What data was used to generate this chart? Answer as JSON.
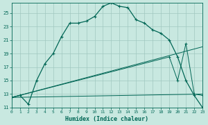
{
  "xlabel": "Humidex (Indice chaleur)",
  "bg_color": "#c8e8e0",
  "grid_color": "#a0c8c0",
  "line_color": "#006655",
  "xlim": [
    0,
    23
  ],
  "ylim": [
    11,
    26.5
  ],
  "xticks": [
    0,
    1,
    2,
    3,
    4,
    5,
    6,
    7,
    8,
    9,
    10,
    11,
    12,
    13,
    14,
    15,
    16,
    17,
    18,
    19,
    20,
    21,
    22,
    23
  ],
  "yticks": [
    11,
    13,
    15,
    17,
    19,
    21,
    23,
    25
  ],
  "series1_x": [
    0,
    1,
    2,
    3,
    4,
    5,
    6,
    7,
    8,
    9,
    10,
    11,
    12,
    13,
    14,
    15,
    16,
    17,
    18,
    19,
    20,
    21,
    22,
    23
  ],
  "series1_y": [
    12.5,
    12.8,
    11.5,
    15.0,
    17.5,
    19.0,
    21.5,
    23.5,
    23.5,
    23.8,
    24.5,
    26.0,
    26.5,
    26.0,
    25.8,
    24.0,
    23.5,
    22.5,
    22.0,
    21.0,
    18.5,
    15.0,
    12.8,
    11.0
  ],
  "series2_x": [
    0,
    19,
    20,
    21,
    22,
    23
  ],
  "series2_y": [
    12.5,
    18.5,
    15.0,
    20.5,
    13.0,
    12.8
  ],
  "series3_x": [
    0,
    23
  ],
  "series3_y": [
    12.5,
    20.0
  ],
  "series4_x": [
    0,
    23
  ],
  "series4_y": [
    12.5,
    13.0
  ]
}
